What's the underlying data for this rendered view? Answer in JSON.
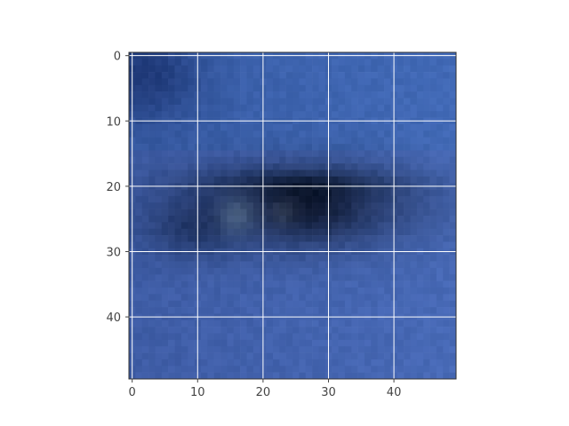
{
  "chart_data": {
    "type": "heatmap",
    "title": "",
    "xlabel": "",
    "ylabel": "",
    "x_range": [
      -0.5,
      49.5
    ],
    "y_range": [
      -0.5,
      49.5
    ],
    "y_inverted": true,
    "grid": true,
    "x_ticks": [
      {
        "value": 0,
        "label": "0"
      },
      {
        "value": 10,
        "label": "10"
      },
      {
        "value": 20,
        "label": "20"
      },
      {
        "value": 30,
        "label": "30"
      },
      {
        "value": 40,
        "label": "40"
      }
    ],
    "y_ticks": [
      {
        "value": 0,
        "label": "0"
      },
      {
        "value": 10,
        "label": "10"
      },
      {
        "value": 20,
        "label": "20"
      },
      {
        "value": 30,
        "label": "30"
      },
      {
        "value": 40,
        "label": "40"
      }
    ],
    "image": {
      "description_hidden": "pixelated close-up of a blue eye",
      "base_color": "#3f5fa6",
      "dark_color": "#15203f",
      "highlight_color": "#8ea5d6"
    },
    "colors": {
      "grid": "#ffffff",
      "spine": "#333333"
    }
  }
}
